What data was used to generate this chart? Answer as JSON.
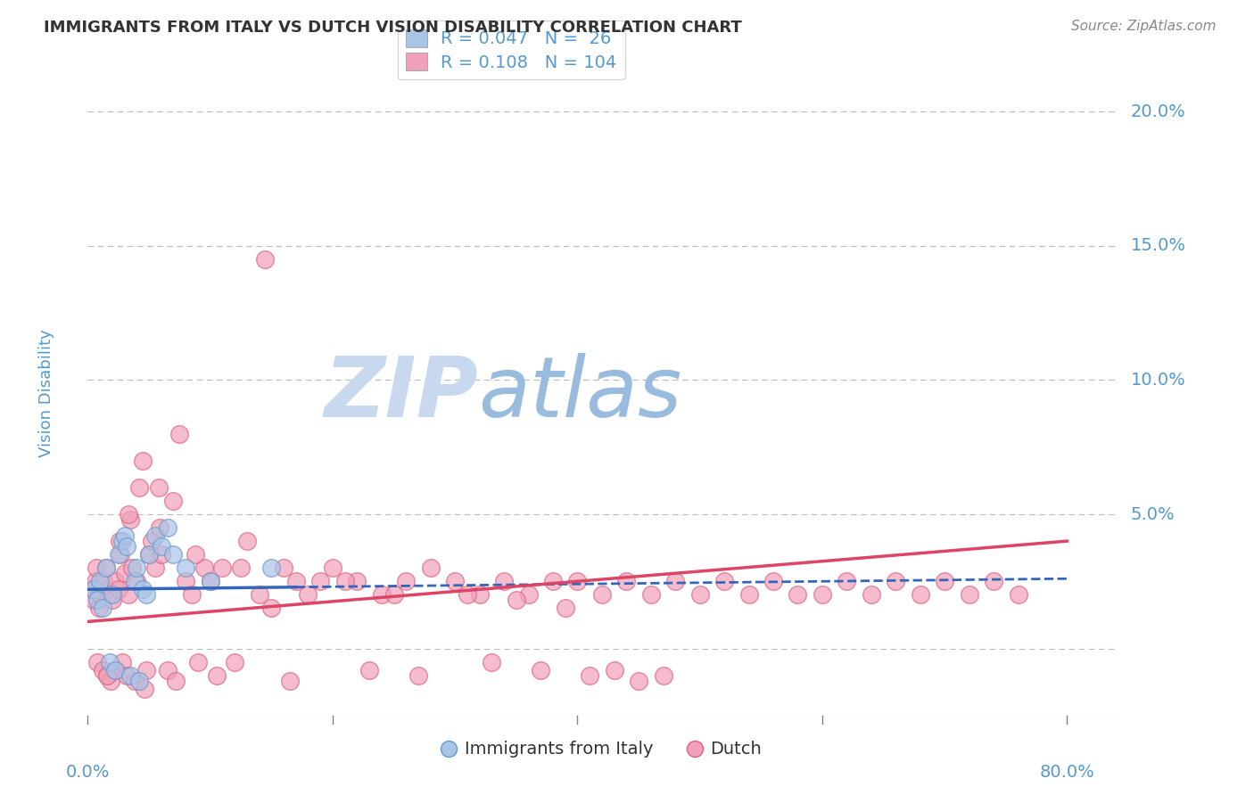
{
  "title": "IMMIGRANTS FROM ITALY VS DUTCH VISION DISABILITY CORRELATION CHART",
  "source": "Source: ZipAtlas.com",
  "ylabel": "Vision Disability",
  "xlim": [
    0.0,
    0.84
  ],
  "ylim": [
    -0.025,
    0.215
  ],
  "yticks": [
    0.0,
    0.05,
    0.1,
    0.15,
    0.2
  ],
  "ytick_labels": [
    "",
    "5.0%",
    "10.0%",
    "15.0%",
    "20.0%"
  ],
  "blue_R": 0.047,
  "blue_N": 26,
  "pink_R": 0.108,
  "pink_N": 104,
  "blue_color": "#aac4e8",
  "pink_color": "#f0a0b8",
  "blue_edge_color": "#6699cc",
  "pink_edge_color": "#e06080",
  "trend_blue_color": "#3366bb",
  "trend_pink_color": "#dd4466",
  "grid_color": "#bbbbbb",
  "tick_label_color": "#5599cc",
  "title_color": "#333333",
  "watermark_color_zip": "#c8d8ee",
  "watermark_color_atlas": "#99bbdd",
  "legend_label_blue": "Immigrants from Italy",
  "legend_label_pink": "Dutch",
  "blue_trend_start_x": 0.0,
  "blue_trend_start_y": 0.022,
  "blue_trend_end_x": 0.8,
  "blue_trend_end_y": 0.026,
  "pink_trend_start_x": 0.0,
  "pink_trend_start_y": 0.01,
  "pink_trend_end_x": 0.8,
  "pink_trend_end_y": 0.04,
  "blue_scatter_x": [
    0.005,
    0.008,
    0.01,
    0.012,
    0.015,
    0.018,
    0.02,
    0.022,
    0.025,
    0.028,
    0.03,
    0.032,
    0.035,
    0.038,
    0.04,
    0.042,
    0.045,
    0.048,
    0.05,
    0.055,
    0.06,
    0.065,
    0.07,
    0.08,
    0.1,
    0.15
  ],
  "blue_scatter_y": [
    0.022,
    0.018,
    0.025,
    0.015,
    0.03,
    -0.005,
    0.02,
    -0.008,
    0.035,
    0.04,
    0.042,
    0.038,
    -0.01,
    0.025,
    0.03,
    -0.012,
    0.022,
    0.02,
    0.035,
    0.042,
    0.038,
    0.045,
    0.035,
    0.03,
    0.025,
    0.03
  ],
  "pink_scatter_x": [
    0.003,
    0.005,
    0.006,
    0.007,
    0.008,
    0.009,
    0.01,
    0.012,
    0.013,
    0.015,
    0.016,
    0.018,
    0.019,
    0.02,
    0.022,
    0.023,
    0.025,
    0.026,
    0.027,
    0.028,
    0.03,
    0.032,
    0.033,
    0.035,
    0.036,
    0.038,
    0.04,
    0.042,
    0.045,
    0.048,
    0.05,
    0.052,
    0.055,
    0.058,
    0.06,
    0.065,
    0.07,
    0.075,
    0.08,
    0.085,
    0.09,
    0.095,
    0.1,
    0.11,
    0.12,
    0.13,
    0.14,
    0.15,
    0.16,
    0.17,
    0.18,
    0.19,
    0.2,
    0.22,
    0.24,
    0.26,
    0.28,
    0.3,
    0.32,
    0.34,
    0.36,
    0.38,
    0.4,
    0.42,
    0.44,
    0.46,
    0.48,
    0.5,
    0.52,
    0.54,
    0.56,
    0.58,
    0.6,
    0.62,
    0.64,
    0.66,
    0.68,
    0.7,
    0.72,
    0.74,
    0.76,
    0.016,
    0.033,
    0.046,
    0.059,
    0.072,
    0.088,
    0.105,
    0.125,
    0.145,
    0.165,
    0.21,
    0.23,
    0.25,
    0.27,
    0.31,
    0.33,
    0.35,
    0.37,
    0.39,
    0.41,
    0.43,
    0.45,
    0.47
  ],
  "pink_scatter_y": [
    0.022,
    0.018,
    0.025,
    0.03,
    -0.005,
    0.015,
    0.02,
    -0.008,
    0.025,
    0.03,
    -0.01,
    0.02,
    -0.012,
    0.018,
    0.025,
    -0.008,
    0.022,
    0.04,
    0.035,
    -0.005,
    0.028,
    -0.01,
    0.02,
    0.048,
    0.03,
    -0.012,
    0.025,
    0.06,
    0.07,
    -0.008,
    0.035,
    0.04,
    0.03,
    0.06,
    0.035,
    -0.008,
    0.055,
    0.08,
    0.025,
    0.02,
    -0.005,
    0.03,
    0.025,
    0.03,
    -0.005,
    0.04,
    0.02,
    0.015,
    0.03,
    0.025,
    0.02,
    0.025,
    0.03,
    0.025,
    0.02,
    0.025,
    0.03,
    0.025,
    0.02,
    0.025,
    0.02,
    0.025,
    0.025,
    0.02,
    0.025,
    0.02,
    0.025,
    0.02,
    0.025,
    0.02,
    0.025,
    0.02,
    0.02,
    0.025,
    0.02,
    0.025,
    0.02,
    0.025,
    0.02,
    0.025,
    0.02,
    -0.01,
    0.05,
    -0.015,
    0.045,
    -0.012,
    0.035,
    -0.01,
    0.03,
    0.145,
    -0.012,
    0.025,
    -0.008,
    0.02,
    -0.01,
    0.02,
    -0.005,
    0.018,
    -0.008,
    0.015,
    -0.01,
    -0.008,
    -0.012,
    -0.01
  ]
}
